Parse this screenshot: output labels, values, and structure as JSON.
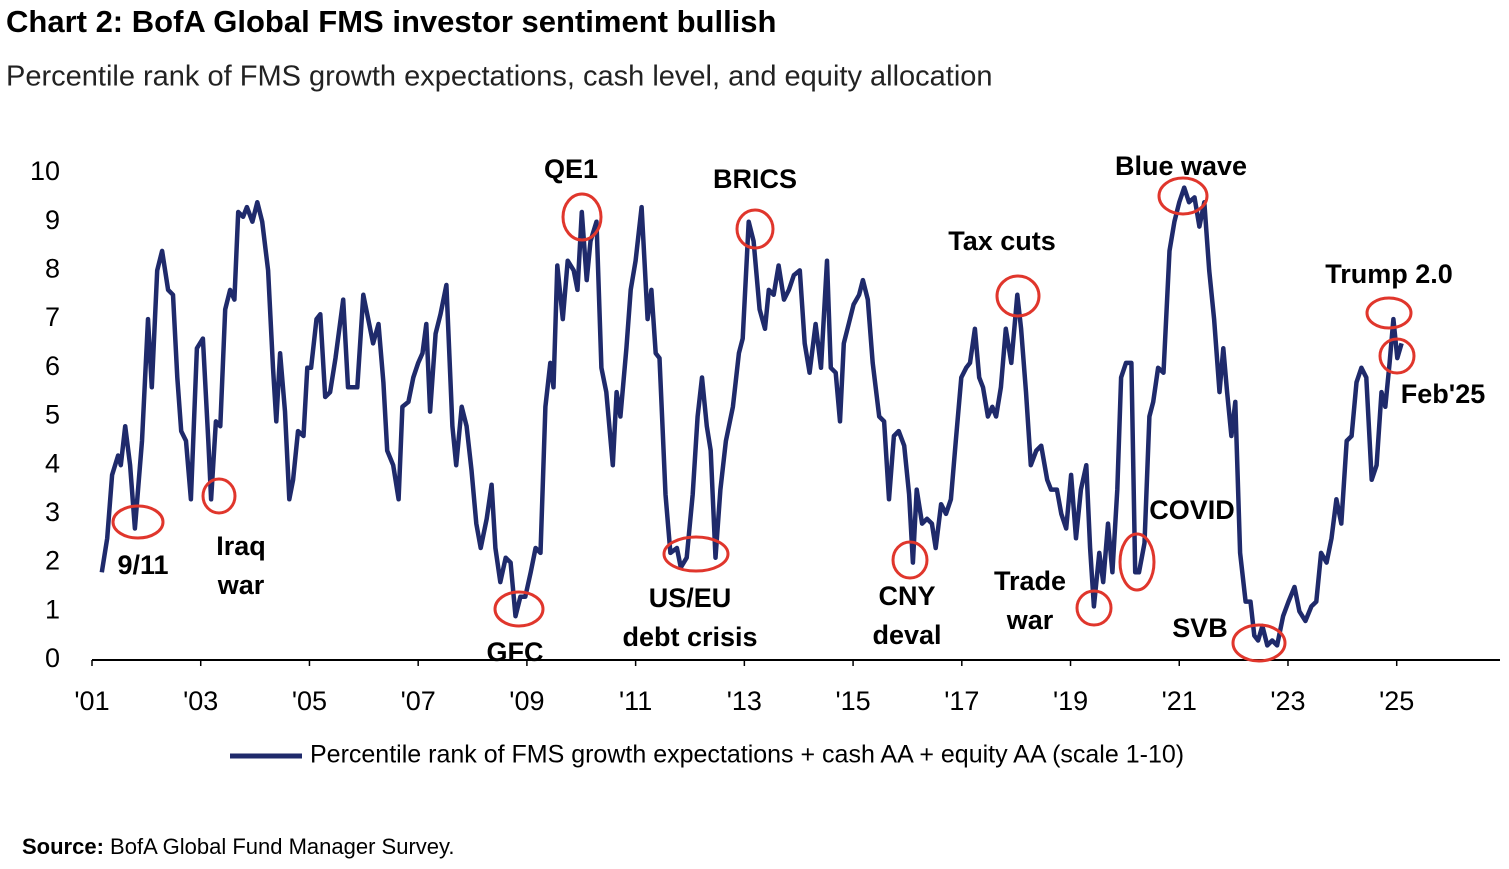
{
  "chart_data": {
    "type": "line",
    "title": "Chart 2: BofA Global FMS investor sentiment bullish",
    "subtitle": "Percentile rank of FMS growth expectations, cash level, and equity allocation",
    "source_label": "Source:",
    "source": "BofA Global Fund Manager Survey.",
    "xlim": [
      2001,
      2026.9
    ],
    "xticks": [
      {
        "value": 2001,
        "label": "'01"
      },
      {
        "value": 2003,
        "label": "'03"
      },
      {
        "value": 2005,
        "label": "'05"
      },
      {
        "value": 2007,
        "label": "'07"
      },
      {
        "value": 2009,
        "label": "'09"
      },
      {
        "value": 2011,
        "label": "'11"
      },
      {
        "value": 2013,
        "label": "'13"
      },
      {
        "value": 2015,
        "label": "'15"
      },
      {
        "value": 2017,
        "label": "'17"
      },
      {
        "value": 2019,
        "label": "'19"
      },
      {
        "value": 2021,
        "label": "'21"
      },
      {
        "value": 2023,
        "label": "'23"
      },
      {
        "value": 2025,
        "label": "'25"
      }
    ],
    "ylim": [
      0,
      10
    ],
    "yticks": [
      0,
      1,
      2,
      3,
      4,
      5,
      6,
      7,
      8,
      9,
      10
    ],
    "legend": "bottom",
    "annotation_color": "#e0362c",
    "annotations": [
      [
        "9/11"
      ],
      [
        "Iraq",
        "war"
      ],
      [
        "GFC"
      ],
      [
        "QE1"
      ],
      [
        "US/EU",
        "debt crisis"
      ],
      [
        "BRICS"
      ],
      [
        "CNY",
        "deval"
      ],
      [
        "Tax cuts"
      ],
      [
        "Trade",
        "war"
      ],
      [
        "COVID"
      ],
      [
        "Blue wave"
      ],
      [
        "SVB"
      ],
      [
        "Trump 2.0"
      ],
      [
        "Feb'25"
      ]
    ],
    "x": [
      2001.18,
      2001.28,
      2001.37,
      2001.48,
      2001.53,
      2001.61,
      2001.7,
      2001.79,
      2001.92,
      2002.03,
      2002.1,
      2002.2,
      2002.29,
      2002.4,
      2002.49,
      2002.57,
      2002.64,
      2002.73,
      2002.82,
      2002.93,
      2003.04,
      2003.14,
      2003.19,
      2003.28,
      2003.36,
      2003.45,
      2003.54,
      2003.62,
      2003.69,
      2003.78,
      2003.85,
      2003.95,
      2004.04,
      2004.13,
      2004.24,
      2004.33,
      2004.39,
      2004.46,
      2004.55,
      2004.63,
      2004.7,
      2004.79,
      2004.89,
      2004.96,
      2005.03,
      2005.13,
      2005.2,
      2005.29,
      2005.38,
      2005.48,
      2005.62,
      2005.71,
      2005.79,
      2005.88,
      2005.99,
      2006.08,
      2006.17,
      2006.27,
      2006.36,
      2006.43,
      2006.54,
      2006.64,
      2006.71,
      2006.82,
      2006.91,
      2007.0,
      2007.08,
      2007.15,
      2007.22,
      2007.32,
      2007.41,
      2007.52,
      2007.63,
      2007.7,
      2007.8,
      2007.89,
      2007.98,
      2008.07,
      2008.15,
      2008.26,
      2008.35,
      2008.42,
      2008.51,
      2008.61,
      2008.7,
      2008.79,
      2008.88,
      2008.97,
      2009.07,
      2009.16,
      2009.25,
      2009.34,
      2009.43,
      2009.49,
      2009.56,
      2009.66,
      2009.75,
      2009.86,
      2009.93,
      2010.01,
      2010.1,
      2010.17,
      2010.28,
      2010.37,
      2010.46,
      2010.58,
      2010.65,
      2010.72,
      2010.83,
      2010.91,
      2011.0,
      2011.11,
      2011.22,
      2011.29,
      2011.37,
      2011.44,
      2011.55,
      2011.64,
      2011.76,
      2011.83,
      2011.94,
      2012.05,
      2012.14,
      2012.22,
      2012.31,
      2012.38,
      2012.47,
      2012.56,
      2012.66,
      2012.79,
      2012.9,
      2012.97,
      2013.08,
      2013.17,
      2013.28,
      2013.38,
      2013.45,
      2013.54,
      2013.63,
      2013.73,
      2013.82,
      2013.91,
      2014.02,
      2014.11,
      2014.2,
      2014.31,
      2014.41,
      2014.52,
      2014.59,
      2014.68,
      2014.76,
      2014.83,
      2014.92,
      2015.01,
      2015.11,
      2015.18,
      2015.27,
      2015.36,
      2015.48,
      2015.57,
      2015.66,
      2015.75,
      2015.84,
      2015.94,
      2016.03,
      2016.1,
      2016.17,
      2016.27,
      2016.36,
      2016.45,
      2016.52,
      2016.62,
      2016.71,
      2016.8,
      2016.89,
      2016.99,
      2017.08,
      2017.15,
      2017.24,
      2017.32,
      2017.39,
      2017.48,
      2017.56,
      2017.63,
      2017.72,
      2017.81,
      2017.91,
      2018.02,
      2018.09,
      2018.18,
      2018.27,
      2018.37,
      2018.46,
      2018.57,
      2018.64,
      2018.75,
      2018.83,
      2018.92,
      2019.01,
      2019.1,
      2019.19,
      2019.29,
      2019.36,
      2019.43,
      2019.53,
      2019.6,
      2019.69,
      2019.77,
      2019.86,
      2019.93,
      2020.02,
      2020.12,
      2020.19,
      2020.26,
      2020.36,
      2020.45,
      2020.52,
      2020.61,
      2020.71,
      2020.82,
      2020.91,
      2021.0,
      2021.09,
      2021.18,
      2021.28,
      2021.37,
      2021.46,
      2021.55,
      2021.64,
      2021.74,
      2021.81,
      2021.88,
      2021.96,
      2022.03,
      2022.12,
      2022.22,
      2022.31,
      2022.38,
      2022.45,
      2022.53,
      2022.62,
      2022.71,
      2022.8,
      2022.91,
      2023.01,
      2023.12,
      2023.21,
      2023.32,
      2023.43,
      2023.52,
      2023.61,
      2023.71,
      2023.8,
      2023.89,
      2023.98,
      2024.08,
      2024.17,
      2024.26,
      2024.35,
      2024.44,
      2024.54,
      2024.63,
      2024.72,
      2024.79,
      2024.87,
      2024.94,
      2025.01,
      2025.09
    ],
    "series": [
      {
        "name": "Percentile rank of FMS growth expectations + cash AA + equity AA (scale 1-10)",
        "color": "#1f2a6b",
        "values": [
          1.8,
          2.5,
          3.8,
          4.2,
          4.0,
          4.8,
          4.0,
          2.7,
          4.5,
          7.0,
          5.6,
          8.0,
          8.4,
          7.6,
          7.5,
          5.8,
          4.7,
          4.5,
          3.3,
          6.4,
          6.6,
          4.5,
          3.3,
          4.9,
          4.8,
          7.2,
          7.6,
          7.4,
          9.2,
          9.1,
          9.3,
          9.0,
          9.4,
          9.0,
          8.0,
          6.0,
          4.9,
          6.3,
          5.1,
          3.3,
          3.7,
          4.7,
          4.6,
          6.0,
          6.0,
          7.0,
          7.1,
          5.4,
          5.5,
          6.2,
          7.4,
          5.6,
          5.6,
          5.6,
          7.5,
          7.0,
          6.5,
          6.9,
          5.7,
          4.3,
          4.0,
          3.3,
          5.2,
          5.3,
          5.8,
          6.1,
          6.3,
          6.9,
          5.1,
          6.7,
          7.1,
          7.7,
          4.8,
          4.0,
          5.2,
          4.8,
          3.9,
          2.8,
          2.3,
          2.9,
          3.6,
          2.3,
          1.6,
          2.1,
          2.0,
          0.9,
          1.3,
          1.3,
          1.8,
          2.3,
          2.2,
          5.2,
          6.1,
          5.6,
          8.1,
          7.0,
          8.2,
          8.0,
          7.6,
          9.2,
          7.8,
          8.6,
          9.0,
          6.0,
          5.5,
          4.0,
          5.5,
          5.0,
          6.4,
          7.6,
          8.2,
          9.3,
          7.0,
          7.6,
          6.3,
          6.2,
          3.4,
          2.2,
          2.3,
          1.9,
          2.1,
          3.4,
          5.0,
          5.8,
          4.8,
          4.3,
          2.1,
          3.5,
          4.5,
          5.2,
          6.3,
          6.6,
          9.0,
          8.6,
          7.2,
          6.8,
          7.6,
          7.5,
          8.1,
          7.4,
          7.6,
          7.9,
          8.0,
          6.5,
          5.9,
          6.9,
          6.0,
          8.2,
          6.0,
          5.9,
          4.9,
          6.5,
          6.9,
          7.3,
          7.5,
          7.8,
          7.4,
          6.1,
          5.0,
          4.9,
          3.3,
          4.6,
          4.7,
          4.4,
          3.4,
          2.0,
          3.5,
          2.8,
          2.9,
          2.8,
          2.3,
          3.2,
          3.0,
          3.3,
          4.5,
          5.8,
          6.0,
          6.1,
          6.8,
          5.8,
          5.6,
          5.0,
          5.2,
          5.0,
          5.6,
          6.8,
          6.1,
          7.5,
          6.8,
          5.5,
          4.0,
          4.3,
          4.4,
          3.7,
          3.5,
          3.5,
          3.0,
          2.7,
          3.8,
          2.5,
          3.5,
          4.0,
          2.3,
          1.1,
          2.2,
          1.6,
          2.8,
          1.8,
          3.5,
          5.8,
          6.1,
          6.1,
          1.8,
          1.8,
          2.4,
          5.0,
          5.3,
          6.0,
          5.9,
          8.4,
          9.0,
          9.4,
          9.7,
          9.4,
          9.5,
          8.9,
          9.4,
          8.0,
          7.0,
          5.5,
          6.4,
          5.5,
          4.6,
          5.3,
          2.2,
          1.2,
          1.2,
          0.5,
          0.4,
          0.7,
          0.3,
          0.4,
          0.3,
          0.9,
          1.2,
          1.5,
          1.0,
          0.8,
          1.1,
          1.2,
          2.2,
          2.0,
          2.5,
          3.3,
          2.8,
          4.5,
          4.6,
          5.7,
          6.0,
          5.8,
          3.7,
          4.0,
          5.5,
          5.2,
          6.1,
          7.0,
          6.2,
          6.5
        ]
      }
    ]
  }
}
